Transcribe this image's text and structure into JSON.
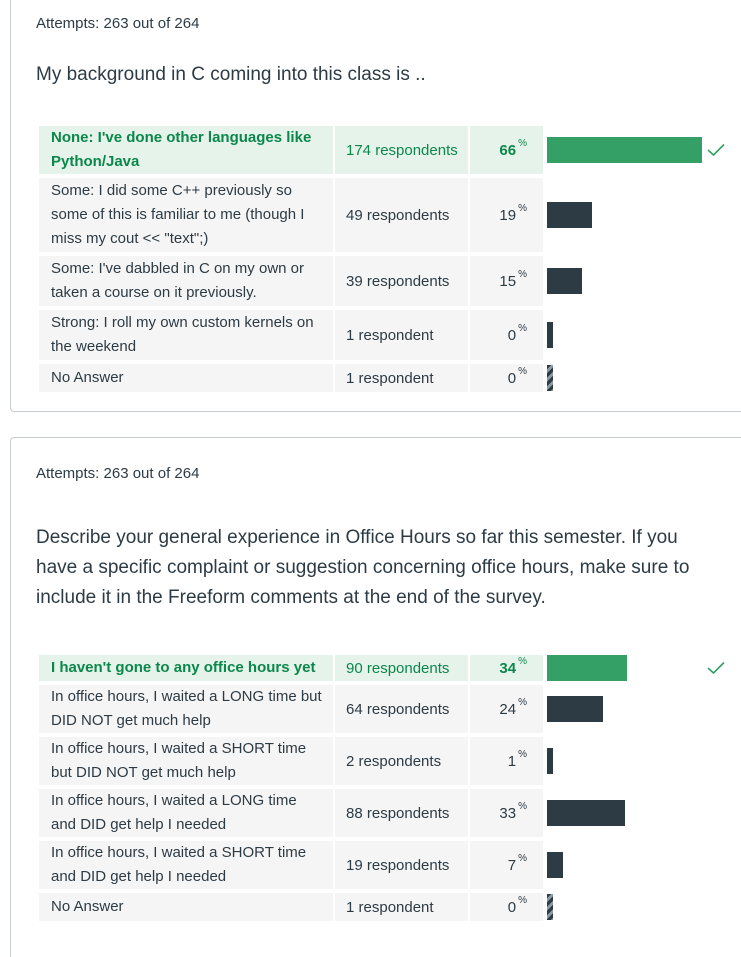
{
  "surveys": [
    {
      "attempts": "Attempts: 263 out of 264",
      "question": "My background in C coming into this class is ..",
      "answers": [
        {
          "text": "None: I've done other languages like Python/Java",
          "respondents": "174 respondents",
          "percent": "66",
          "value": 66,
          "correct": true
        },
        {
          "text": "Some: I did some C++ previously so some of this is familiar to me (though I miss my cout << \"text\";)",
          "respondents": "49 respondents",
          "percent": "19",
          "value": 19,
          "correct": false
        },
        {
          "text": "Some: I've dabbled in C on my own or taken a course on it previously.",
          "respondents": "39 respondents",
          "percent": "15",
          "value": 15,
          "correct": false
        },
        {
          "text": "Strong: I roll my own custom kernels on the weekend",
          "respondents": "1 respondent",
          "percent": "0",
          "value": 0.4,
          "correct": false
        },
        {
          "text": "No Answer",
          "respondents": "1 respondent",
          "percent": "0",
          "value": 0,
          "correct": false,
          "no_answer": true
        }
      ]
    },
    {
      "attempts": "Attempts: 263 out of 264",
      "question": "Describe your general experience in Office Hours so far this semester. If you have a specific complaint or suggestion concerning office hours, make sure to include it in the Freeform comments at the end of the survey.",
      "answers": [
        {
          "text": "I haven't gone to any office hours yet",
          "respondents": "90 respondents",
          "percent": "34",
          "value": 34,
          "correct": true
        },
        {
          "text": "In office hours, I waited a LONG time but DID NOT get much help",
          "respondents": "64 respondents",
          "percent": "24",
          "value": 24,
          "correct": false
        },
        {
          "text": "In office hours, I waited a SHORT time but DID NOT get much help",
          "respondents": "2 respondents",
          "percent": "1",
          "value": 1,
          "correct": false
        },
        {
          "text": "In office hours, I waited a LONG time and DID get help I needed",
          "respondents": "88 respondents",
          "percent": "33",
          "value": 33,
          "correct": false
        },
        {
          "text": "In office hours, I waited a SHORT time and DID get help I needed",
          "respondents": "19 respondents",
          "percent": "7",
          "value": 7,
          "correct": false
        },
        {
          "text": "No Answer",
          "respondents": "1 respondent",
          "percent": "0",
          "value": 0,
          "correct": false,
          "no_answer": true
        }
      ]
    }
  ],
  "percent_symbol": "%",
  "colors": {
    "correct": "#34a065",
    "correct_text": "#0b874b",
    "bar": "#2d3b45"
  },
  "icons": {
    "correct_marker": "checkmark-icon"
  }
}
